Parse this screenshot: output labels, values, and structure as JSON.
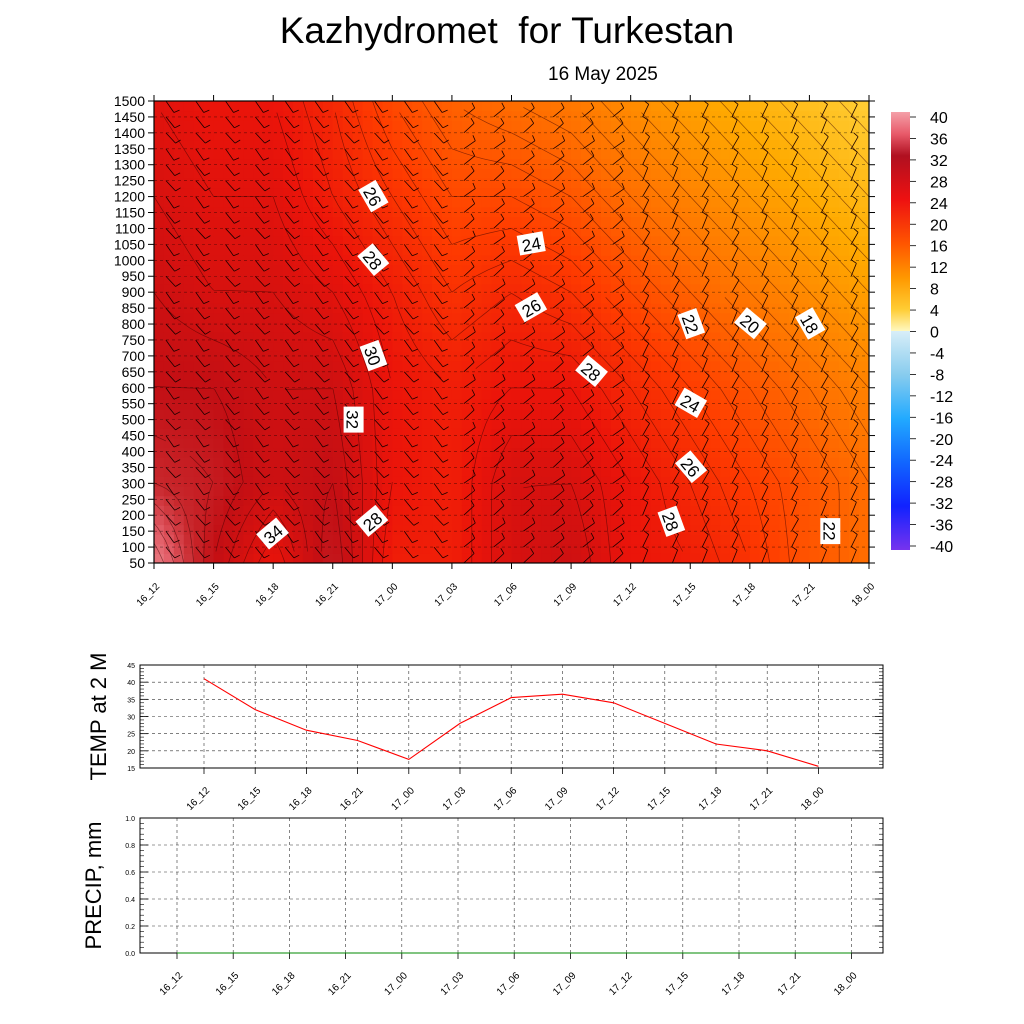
{
  "title": "Kazhydromet  for Turkestan",
  "subtitle": "16 May 2025",
  "time_labels": [
    "16_12",
    "16_15",
    "16_18",
    "16_21",
    "17_00",
    "17_03",
    "17_06",
    "17_09",
    "17_12",
    "17_15",
    "17_18",
    "17_21",
    "18_00"
  ],
  "chart_data": [
    {
      "type": "heatmap",
      "title": "Kazhydromet  for Turkestan",
      "subtitle": "16 May 2025",
      "xlabel": "",
      "ylabel": "",
      "x": [
        "16_12",
        "16_15",
        "16_18",
        "16_21",
        "17_00",
        "17_03",
        "17_06",
        "17_09",
        "17_12",
        "17_15",
        "17_18",
        "17_21",
        "18_00"
      ],
      "y_ticks": [
        50,
        100,
        150,
        200,
        250,
        300,
        350,
        400,
        450,
        500,
        550,
        600,
        650,
        700,
        750,
        800,
        850,
        900,
        950,
        1000,
        1050,
        1100,
        1150,
        1200,
        1250,
        1300,
        1350,
        1400,
        1450,
        1500
      ],
      "ylim": [
        50,
        1500
      ],
      "colorbar": {
        "labels": [
          "40",
          "36",
          "32",
          "28",
          "24",
          "20",
          "16",
          "12",
          "8",
          "4",
          "0",
          "-4",
          "-8",
          "-12",
          "-16",
          "-20",
          "-24",
          "-28",
          "-32",
          "-36",
          "-40"
        ],
        "range": [
          -40,
          40
        ]
      },
      "temperature_grid": {
        "heights": [
          50,
          300,
          600,
          900,
          1200,
          1500
        ],
        "values": [
          [
            38,
            32,
            28,
            33,
            27,
            27,
            30,
            31,
            28,
            27,
            25,
            22,
            20
          ],
          [
            34,
            33,
            31,
            32,
            28,
            27,
            30,
            30,
            28,
            26,
            24,
            22,
            20
          ],
          [
            32,
            32,
            31,
            31,
            28,
            27,
            28,
            28,
            26,
            24,
            22,
            20,
            18
          ],
          [
            31,
            30,
            30,
            29,
            27,
            25,
            26,
            25,
            23,
            21,
            19,
            17,
            15
          ],
          [
            30,
            29,
            29,
            27,
            25,
            23,
            23,
            22,
            20,
            18,
            16,
            14,
            12
          ],
          [
            29,
            28,
            28,
            26,
            23,
            21,
            20,
            19,
            17,
            15,
            13,
            11,
            9
          ]
        ]
      },
      "contour_labels": [
        {
          "text": "26",
          "x": "16_23",
          "y": 1200
        },
        {
          "text": "28",
          "x": "16_23",
          "y": 1000
        },
        {
          "text": "30",
          "x": "16_23",
          "y": 700
        },
        {
          "text": "32",
          "x": "16_22",
          "y": 500
        },
        {
          "text": "34",
          "x": "16_18",
          "y": 140
        },
        {
          "text": "28",
          "x": "16_23",
          "y": 180
        },
        {
          "text": "24",
          "x": "17_07",
          "y": 1050
        },
        {
          "text": "26",
          "x": "17_07",
          "y": 850
        },
        {
          "text": "28",
          "x": "17_10",
          "y": 650
        },
        {
          "text": "22",
          "x": "17_15",
          "y": 800
        },
        {
          "text": "20",
          "x": "17_18",
          "y": 800
        },
        {
          "text": "18",
          "x": "17_21",
          "y": 800
        },
        {
          "text": "24",
          "x": "17_15",
          "y": 550
        },
        {
          "text": "26",
          "x": "17_15",
          "y": 350
        },
        {
          "text": "28",
          "x": "17_14",
          "y": 180
        },
        {
          "text": "22",
          "x": "17_22",
          "y": 150
        }
      ]
    },
    {
      "type": "line",
      "ylabel": "TEMP at 2 M",
      "x": [
        "16_12",
        "16_15",
        "16_18",
        "16_21",
        "17_00",
        "17_03",
        "17_06",
        "17_09",
        "17_12",
        "17_15",
        "17_18",
        "17_21",
        "18_00"
      ],
      "series": [
        {
          "values": [
            41,
            32,
            26,
            23,
            17.5,
            28,
            35.5,
            36.5,
            34,
            28,
            22,
            20,
            15.5
          ]
        }
      ],
      "y_ticks": [
        15,
        20,
        25,
        30,
        35,
        40,
        45
      ],
      "ylim": [
        15,
        45
      ],
      "grid": true
    },
    {
      "type": "line",
      "ylabel": "PRECIP, mm",
      "x": [
        "16_12",
        "16_15",
        "16_18",
        "16_21",
        "17_00",
        "17_03",
        "17_06",
        "17_09",
        "17_12",
        "17_15",
        "17_18",
        "17_21",
        "18_00"
      ],
      "series": [
        {
          "values": [
            0,
            0,
            0,
            0,
            0,
            0,
            0,
            0,
            0,
            0,
            0,
            0,
            0
          ]
        }
      ],
      "y_ticks": [
        "0.0",
        "0.2",
        "0.4",
        "0.6",
        "0.8",
        "1.0"
      ],
      "ylim": [
        0,
        1
      ],
      "grid": true
    }
  ],
  "colors": {
    "temp_line": "#ff0000",
    "precip_line": "#008800",
    "grid": "#000000"
  }
}
